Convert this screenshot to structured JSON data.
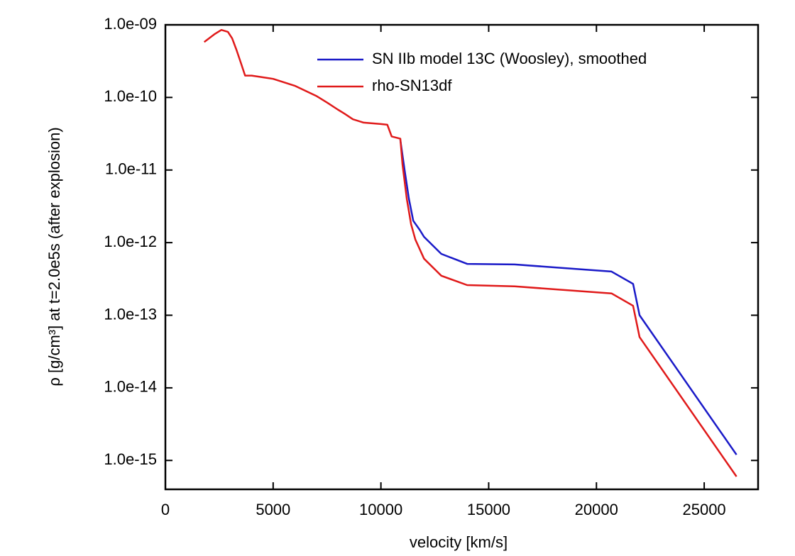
{
  "chart_data": {
    "type": "line",
    "xlabel": "velocity [km/s]",
    "ylabel": "ρ [g/cm³]  at  t=2.0e5s  (after explosion)",
    "xlim": [
      0,
      27500
    ],
    "xticks": [
      0,
      5000,
      10000,
      15000,
      20000,
      25000
    ],
    "ylim": [
      4e-16,
      1e-09
    ],
    "ylog": true,
    "yticks": [
      {
        "value": 1e-09,
        "label": "1.0e-09"
      },
      {
        "value": 1e-10,
        "label": "1.0e-10"
      },
      {
        "value": 1e-11,
        "label": "1.0e-11"
      },
      {
        "value": 1e-12,
        "label": "1.0e-12"
      },
      {
        "value": 1e-13,
        "label": "1.0e-13"
      },
      {
        "value": 1e-14,
        "label": "1.0e-14"
      },
      {
        "value": 1e-15,
        "label": "1.0e-15"
      }
    ],
    "grid": false,
    "legend": "top-right",
    "series": [
      {
        "name": "SN IIb model 13C (Woosley), smoothed",
        "color": "#1a1ac8",
        "x": [
          10900,
          11100,
          11300,
          11500,
          11800,
          12000,
          12800,
          14000,
          16200,
          20700,
          21700,
          22000,
          26500
        ],
        "values": [
          2.6e-11,
          1e-11,
          4e-12,
          2e-12,
          1.5e-12,
          1.2e-12,
          7e-13,
          5.1e-13,
          5e-13,
          4e-13,
          2.7e-13,
          1e-13,
          1.2e-15
        ]
      },
      {
        "name": "rho-SN13df",
        "color": "#e01a1a",
        "x": [
          1800,
          2300,
          2600,
          2900,
          3100,
          3300,
          3500,
          3700,
          4000,
          5000,
          6000,
          7000,
          7500,
          8000,
          8300,
          8700,
          9200,
          10000,
          10300,
          10500,
          10900,
          11000,
          11200,
          11400,
          11600,
          12000,
          12800,
          14000,
          16200,
          20700,
          21700,
          22000,
          26500
        ],
        "values": [
          5.8e-10,
          7.5e-10,
          8.5e-10,
          8e-10,
          6.5e-10,
          4.5e-10,
          3e-10,
          2e-10,
          2e-10,
          1.8e-10,
          1.45e-10,
          1.05e-10,
          8.5e-11,
          6.8e-11,
          6e-11,
          5e-11,
          4.5e-11,
          4.3e-11,
          4.2e-11,
          2.9e-11,
          2.7e-11,
          1.2e-11,
          4e-12,
          1.8e-12,
          1.1e-12,
          6e-13,
          3.5e-13,
          2.6e-13,
          2.5e-13,
          2e-13,
          1.35e-13,
          5e-14,
          6e-16
        ]
      }
    ]
  }
}
